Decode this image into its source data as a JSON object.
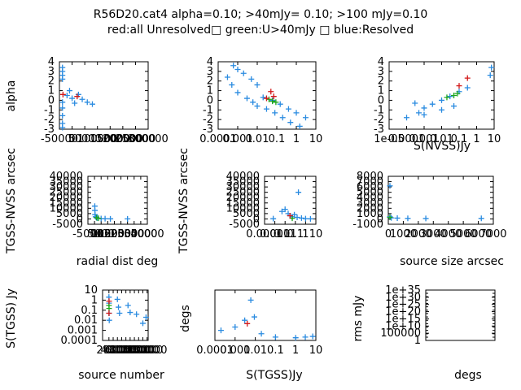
{
  "title": {
    "line1": "R56D20.cat4 alpha=0.10; >40mJy= 0.10; >100 mJy=0.10",
    "line2": "red:all Unresolved□ green:U>40mJy □ blue:Resolved"
  },
  "colors": {
    "blue": "#2a8be0",
    "green": "#1ca51c",
    "red": "#d21818",
    "dark": "#8b1a1a"
  },
  "chart_data": [
    {
      "type": "scatter",
      "panel": "alpha-vs-position",
      "xlabel": "",
      "ylabel": "alpha",
      "xticks": [
        "-50000",
        "0",
        "50000",
        "100000",
        "150000",
        "200000",
        "250000",
        "300000"
      ],
      "yticks": [
        "4",
        "3",
        "2",
        "1",
        "0",
        "-1",
        "-2",
        "-3"
      ],
      "ylim": [
        -3,
        4
      ],
      "series": [
        {
          "color": "blue",
          "points": [
            [
              -38000,
              3.4
            ],
            [
              -38000,
              3.0
            ],
            [
              -38000,
              2.6
            ],
            [
              -38000,
              2.2
            ],
            [
              -38000,
              -0.2
            ],
            [
              -38000,
              -0.8
            ],
            [
              -38000,
              -1.6
            ],
            [
              -38000,
              -2.4
            ],
            [
              -38000,
              -2.9
            ],
            [
              -20000,
              0.5
            ],
            [
              -10000,
              1.0
            ],
            [
              0,
              0.2
            ],
            [
              10000,
              -0.3
            ],
            [
              25000,
              0.6
            ],
            [
              40000,
              0.1
            ],
            [
              60000,
              -0.2
            ],
            [
              80000,
              -0.4
            ]
          ]
        },
        {
          "color": "red",
          "points": [
            [
              -36000,
              0.6
            ],
            [
              20000,
              0.4
            ]
          ]
        }
      ]
    },
    {
      "type": "scatter",
      "panel": "alpha-vs-tgss-flux",
      "xlabel": "",
      "ylabel": "",
      "xticks": [
        "0.0001",
        "0.001",
        "0.01",
        "0.1",
        "1",
        "10"
      ],
      "xscale": "log",
      "yticks": [
        "4",
        "3",
        "2",
        "1",
        "0",
        "-1",
        "-2",
        "-3"
      ],
      "ylim": [
        -3,
        4
      ],
      "series": [
        {
          "color": "blue",
          "points": [
            [
              0.0006,
              3.6
            ],
            [
              0.001,
              3.2
            ],
            [
              0.002,
              2.8
            ],
            [
              0.005,
              2.2
            ],
            [
              0.01,
              1.6
            ],
            [
              0.0003,
              2.4
            ],
            [
              0.0005,
              1.6
            ],
            [
              0.001,
              0.8
            ],
            [
              0.003,
              0.2
            ],
            [
              0.006,
              -0.2
            ],
            [
              0.01,
              -0.6
            ],
            [
              0.03,
              -0.9
            ],
            [
              0.08,
              -1.3
            ],
            [
              0.2,
              -1.8
            ],
            [
              0.5,
              -2.3
            ],
            [
              1.5,
              -2.7
            ],
            [
              0.02,
              0.3
            ],
            [
              0.06,
              0.0
            ],
            [
              0.15,
              -0.4
            ],
            [
              0.4,
              -0.9
            ],
            [
              1.0,
              -1.3
            ],
            [
              3.0,
              -1.8
            ]
          ]
        },
        {
          "color": "green",
          "points": [
            [
              0.04,
              0.1
            ],
            [
              0.06,
              -0.1
            ],
            [
              0.09,
              -0.2
            ]
          ]
        },
        {
          "color": "red",
          "points": [
            [
              0.03,
              0.2
            ],
            [
              0.05,
              0.9
            ],
            [
              0.07,
              0.4
            ]
          ]
        }
      ]
    },
    {
      "type": "scatter",
      "panel": "alpha-vs-nvss-flux",
      "xlabel": "S(NVSS)Jy",
      "ylabel": "",
      "xticks": [
        "1e-05",
        "0.0001",
        "0.001",
        "0.01",
        "0.1",
        "1",
        "10"
      ],
      "xscale": "log",
      "yticks": [
        "4",
        "3",
        "2",
        "1",
        "0",
        "-1",
        "-2",
        "-3"
      ],
      "ylim": [
        -3,
        4
      ],
      "series": [
        {
          "color": "blue",
          "points": [
            [
              0.0001,
              -1.8
            ],
            [
              0.0005,
              -1.3
            ],
            [
              0.001,
              -0.8
            ],
            [
              0.003,
              -0.4
            ],
            [
              0.01,
              0.0
            ],
            [
              0.03,
              0.4
            ],
            [
              0.1,
              0.9
            ],
            [
              0.3,
              1.3
            ],
            [
              0.001,
              -1.5
            ],
            [
              0.01,
              -1.0
            ],
            [
              0.05,
              -0.6
            ],
            [
              6.0,
              2.6
            ],
            [
              7.0,
              3.4
            ],
            [
              0.0003,
              -0.3
            ]
          ]
        },
        {
          "color": "green",
          "points": [
            [
              0.02,
              0.3
            ],
            [
              0.05,
              0.5
            ],
            [
              0.08,
              0.7
            ]
          ]
        },
        {
          "color": "red",
          "points": [
            [
              0.3,
              2.3
            ],
            [
              0.1,
              1.5
            ]
          ]
        }
      ]
    },
    {
      "type": "scatter",
      "panel": "tgss-nvss-vs-radial-dist",
      "xlabel": "radial dist deg",
      "ylabel": "TGSS-NVSS arcsec",
      "xticks": [
        "-5000",
        "0",
        "5000",
        "10000",
        "15000",
        "20000",
        "25000",
        "30000",
        "35000",
        "40000"
      ],
      "yticks": [
        "40000",
        "35000",
        "30000",
        "25000",
        "20000",
        "15000",
        "10000",
        "5000",
        "0",
        "-5000"
      ],
      "ylim": [
        -5000,
        40000
      ],
      "series": [
        {
          "color": "blue",
          "points": [
            [
              200,
              12000
            ],
            [
              300,
              8000
            ],
            [
              400,
              4000
            ],
            [
              800,
              2000
            ],
            [
              2000,
              800
            ],
            [
              5000,
              300
            ],
            [
              8000,
              200
            ],
            [
              12000,
              100
            ],
            [
              25000,
              50
            ]
          ]
        },
        {
          "color": "green",
          "points": [
            [
              1500,
              1200
            ],
            [
              3000,
              600
            ]
          ]
        }
      ]
    },
    {
      "type": "scatter",
      "panel": "tgss-nvss-vs-tgss-flux",
      "xlabel": "",
      "ylabel": "TGSS-NVSS arcsec",
      "xticks": [
        "0.0001",
        "0.001",
        "0.01",
        "0.1",
        "1",
        "10"
      ],
      "xscale": "log",
      "yticks": [
        "40000",
        "35000",
        "30000",
        "25000",
        "20000",
        "15000",
        "10000",
        "5000",
        "0",
        "-5000"
      ],
      "ylim": [
        -5000,
        40000
      ],
      "series": [
        {
          "color": "blue",
          "points": [
            [
              0.01,
              9000
            ],
            [
              0.02,
              5000
            ],
            [
              0.03,
              3000
            ],
            [
              0.05,
              2000
            ],
            [
              0.08,
              4000
            ],
            [
              0.15,
              1500
            ],
            [
              0.4,
              800
            ],
            [
              1.0,
              200
            ],
            [
              3.0,
              100
            ],
            [
              0.0007,
              200
            ],
            [
              0.005,
              7000
            ],
            [
              0.2,
              25000
            ]
          ]
        },
        {
          "color": "green",
          "points": [
            [
              0.05,
              600
            ]
          ]
        },
        {
          "color": "red",
          "points": [
            [
              0.03,
              3000
            ]
          ]
        }
      ]
    },
    {
      "type": "scatter",
      "panel": "tgss-nvss-vs-source-size",
      "xlabel": "source size arcsec",
      "ylabel": "",
      "xticks": [
        "0",
        "1000",
        "2000",
        "3000",
        "4000",
        "5000",
        "6000",
        "7000"
      ],
      "yticks": [
        "8000",
        "7000",
        "6000",
        "5000",
        "4000",
        "3000",
        "2000",
        "1000",
        "0",
        "-1000"
      ],
      "ylim": [
        -1000,
        8000
      ],
      "series": [
        {
          "color": "blue",
          "points": [
            [
              50,
              6200
            ],
            [
              100,
              400
            ],
            [
              200,
              200
            ],
            [
              600,
              150
            ],
            [
              1300,
              100
            ],
            [
              2500,
              80
            ],
            [
              6200,
              100
            ]
          ]
        },
        {
          "color": "green",
          "points": [
            [
              80,
              300
            ]
          ]
        }
      ]
    },
    {
      "type": "scatter",
      "panel": "tgss-flux-vs-source-number",
      "xlabel": "source number",
      "ylabel": "S(TGSS) Jy",
      "xticks": [
        "0",
        "20000",
        "40000",
        "60000",
        "80000",
        "100000",
        "120000",
        "140000",
        "160000",
        "180000"
      ],
      "yscale": "log",
      "yticks": [
        "10",
        "1",
        "0.1",
        "0.01",
        "0.001",
        "0.0001"
      ],
      "series": [
        {
          "color": "blue",
          "points": [
            [
              0,
              2.0
            ],
            [
              500,
              0.5
            ],
            [
              1000,
              0.05
            ],
            [
              1500,
              0.01
            ],
            [
              40000,
              1.2
            ],
            [
              45000,
              0.2
            ],
            [
              50000,
              0.05
            ],
            [
              90000,
              0.3
            ],
            [
              100000,
              0.06
            ],
            [
              130000,
              0.04
            ],
            [
              160000,
              0.005
            ],
            [
              175000,
              0.02
            ]
          ]
        },
        {
          "color": "green",
          "points": [
            [
              300,
              0.3
            ],
            [
              700,
              0.15
            ]
          ]
        },
        {
          "color": "red",
          "points": [
            [
              200,
              0.05
            ],
            [
              600,
              0.8
            ]
          ]
        }
      ]
    },
    {
      "type": "scatter",
      "panel": "degs-vs-tgss-flux",
      "xlabel": "S(TGSS)Jy",
      "ylabel": "degs",
      "xticks": [
        "0.0001",
        "0.001",
        "0.01",
        "0.1",
        "1",
        "10"
      ],
      "xscale": "log",
      "series": [
        {
          "color": "blue",
          "points": [
            [
              0.0002,
              0.15
            ],
            [
              0.001,
              0.2
            ],
            [
              0.003,
              0.3
            ],
            [
              0.006,
              0.6
            ],
            [
              0.009,
              0.35
            ],
            [
              0.02,
              0.1
            ],
            [
              0.1,
              0.05
            ],
            [
              1.0,
              0.04
            ],
            [
              3.0,
              0.05
            ],
            [
              7.0,
              0.06
            ]
          ]
        },
        {
          "color": "red",
          "points": [
            [
              0.004,
              0.25
            ]
          ]
        }
      ]
    },
    {
      "type": "scatter",
      "panel": "rms-vs-degs",
      "xlabel": "degs",
      "ylabel": "rms mJy",
      "yscale": "log",
      "yticks": [
        "1e+35",
        "1e+30",
        "1e+25",
        "1e+20",
        "1e+15",
        "1e+10",
        "100000",
        "1"
      ],
      "series": []
    }
  ]
}
